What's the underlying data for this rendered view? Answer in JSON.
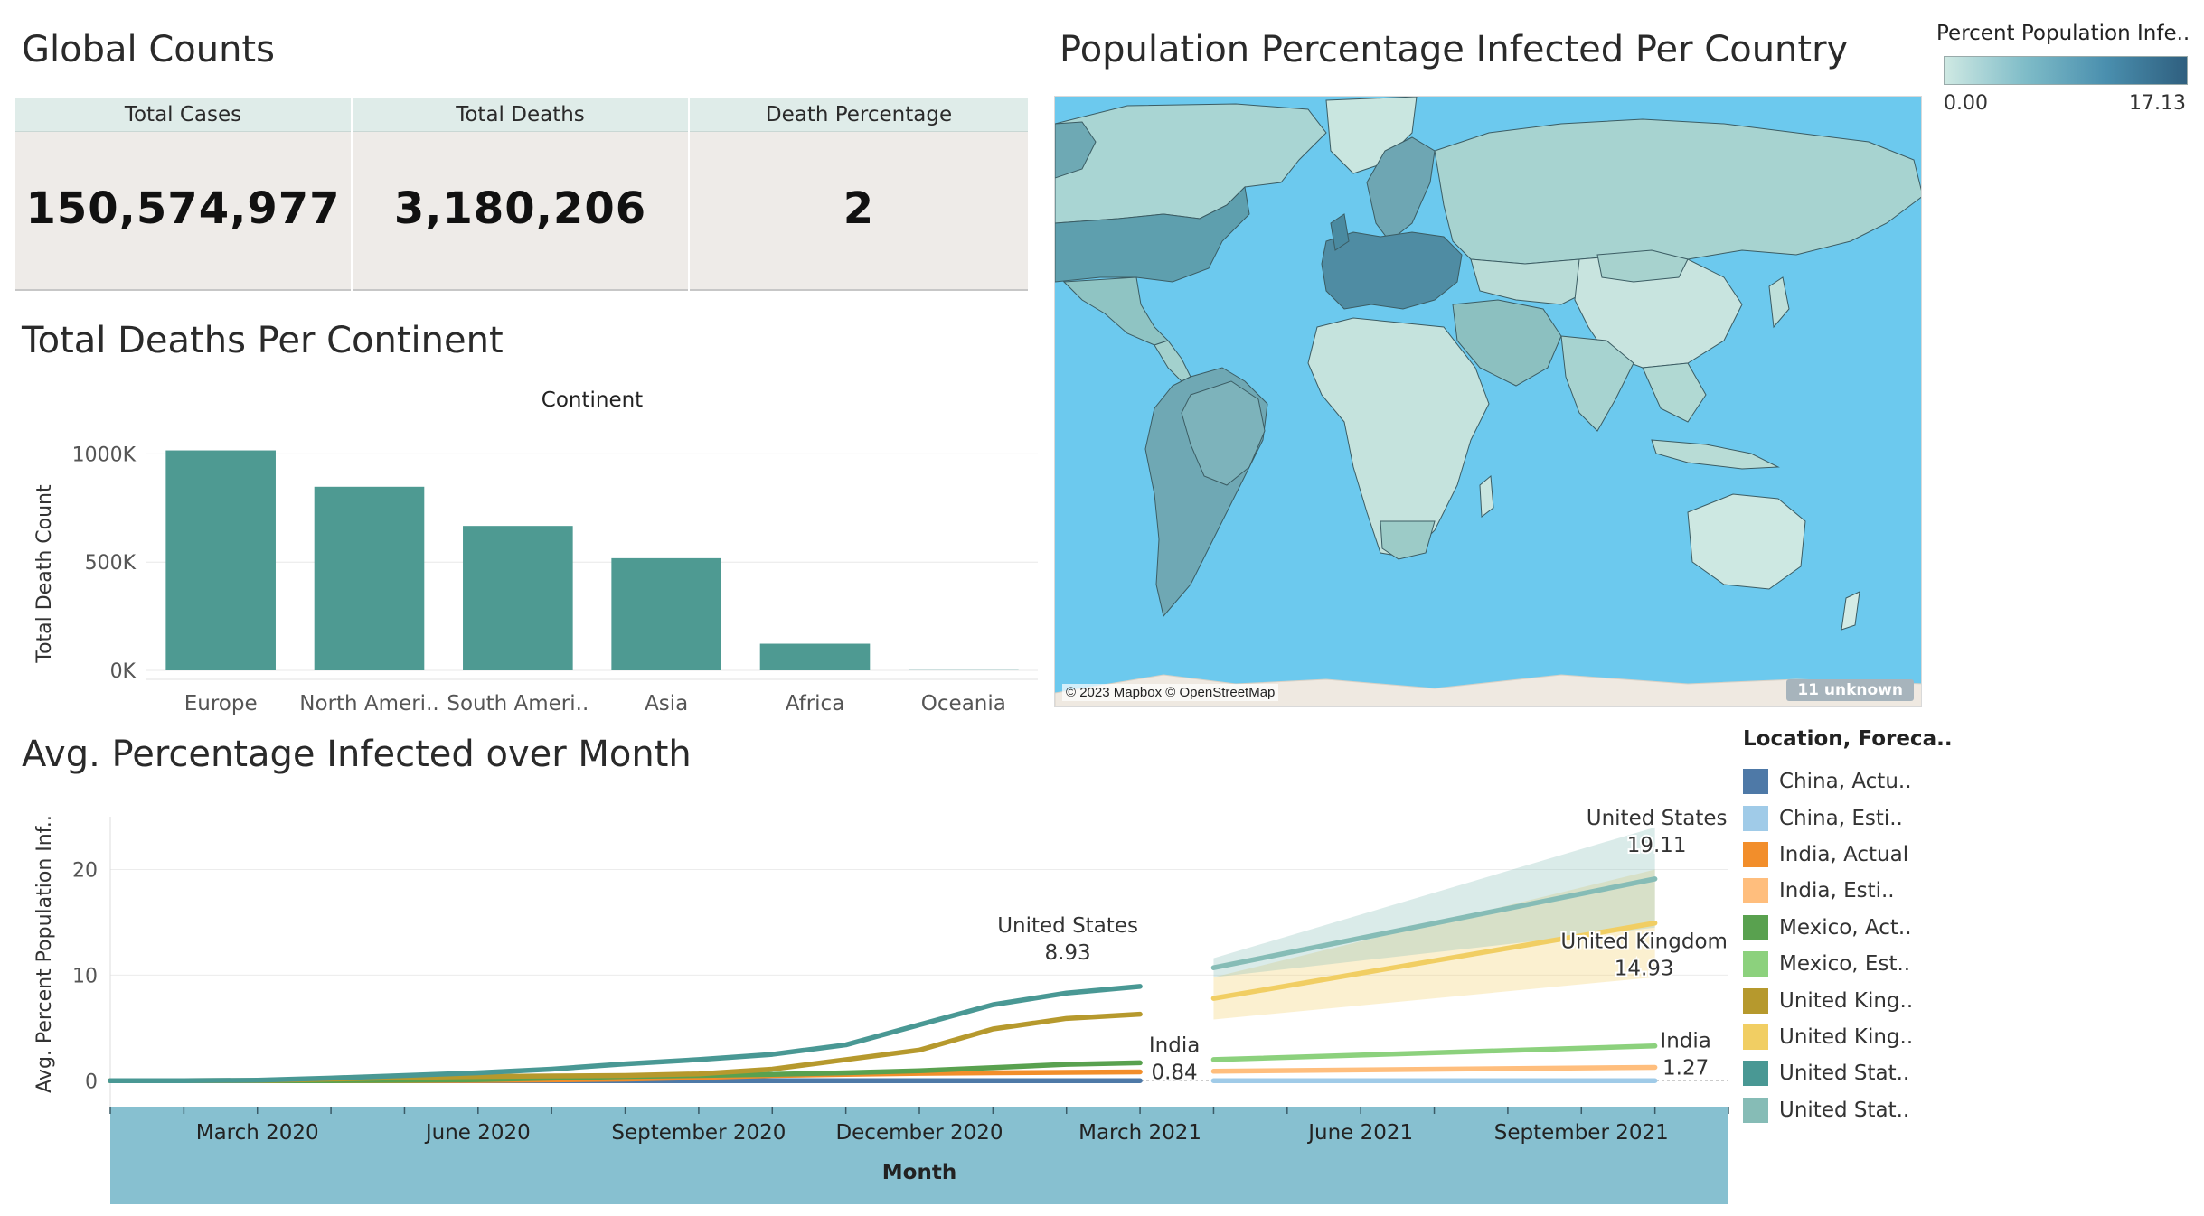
{
  "dashboard": {
    "global_counts": {
      "title": "Global Counts",
      "headers": [
        "Total Cases",
        "Total Deaths",
        "Death Percentage"
      ],
      "values": [
        "150,574,977",
        "3,180,206",
        "2"
      ]
    },
    "map_panel": {
      "title": "Population Percentage Infected Per Country",
      "attribution": "© 2023 Mapbox © OpenStreetMap",
      "unknown_badge": "11 unknown",
      "colors": {
        "ocean": "#6cc9ee",
        "land_low": "#cfe9e3",
        "land_high": "#2f5f7f",
        "unmapped": "#efe9e1"
      }
    },
    "color_legend": {
      "title": "Percent Population Infe..",
      "min_label": "0.00",
      "max_label": "17.13",
      "min": 0.0,
      "max": 17.13
    },
    "series_legend": {
      "title": "Location, Foreca..",
      "items": [
        {
          "label": "China, Actu..",
          "color": "#4e79a7"
        },
        {
          "label": "China, Esti..",
          "color": "#a0cbe8"
        },
        {
          "label": "India, Actual",
          "color": "#f28e2b"
        },
        {
          "label": "India, Esti..",
          "color": "#ffbe7d"
        },
        {
          "label": "Mexico, Act..",
          "color": "#59a14f"
        },
        {
          "label": "Mexico, Est..",
          "color": "#8cd17d"
        },
        {
          "label": "United King..",
          "color": "#b6992d"
        },
        {
          "label": "United King..",
          "color": "#f1ce63"
        },
        {
          "label": "United Stat..",
          "color": "#499894"
        },
        {
          "label": "United Stat..",
          "color": "#86bcb6"
        }
      ]
    }
  },
  "chart_data": [
    {
      "type": "bar",
      "title": "Total Deaths Per Continent",
      "header_label": "Continent",
      "ylabel": "Total Death Count",
      "xlabel": "",
      "categories": [
        "Europe",
        "North Ameri..",
        "South Ameri..",
        "Asia",
        "Africa",
        "Oceania"
      ],
      "values": [
        1016000,
        848000,
        667000,
        518000,
        123000,
        1000
      ],
      "ylim": [
        0,
        1000000
      ],
      "yticks": [
        0,
        500000,
        1000000
      ],
      "ytick_labels": [
        "0K",
        "500K",
        "1000K"
      ],
      "color": "#4e9a92",
      "grid": true
    },
    {
      "type": "line",
      "title": "Avg. Percentage Infected over Month",
      "xlabel": "Month",
      "ylabel": "Avg. Percent Population Inf..",
      "x_range": [
        "2020-01",
        "2021-11"
      ],
      "xticks": [
        "2020-03",
        "2020-06",
        "2020-09",
        "2020-12",
        "2021-03",
        "2021-06",
        "2021-09"
      ],
      "xtick_labels": [
        "March 2020",
        "June 2020",
        "September 2020",
        "December 2020",
        "March 2021",
        "June 2021",
        "September 2021"
      ],
      "ylim": [
        -1,
        25
      ],
      "yticks": [
        0,
        10,
        20
      ],
      "series": [
        {
          "name": "China, Actu..",
          "color": "#4e79a7",
          "x": [
            "2020-01",
            "2020-02",
            "2020-03",
            "2020-04",
            "2020-05",
            "2020-06",
            "2020-07",
            "2020-08",
            "2020-09",
            "2020-10",
            "2020-11",
            "2020-12",
            "2021-01",
            "2021-02",
            "2021-03"
          ],
          "y": [
            0,
            0.01,
            0.01,
            0.01,
            0.01,
            0.01,
            0.01,
            0.01,
            0.01,
            0.01,
            0.01,
            0.01,
            0.01,
            0.01,
            0.01
          ]
        },
        {
          "name": "China, Esti..",
          "color": "#a0cbe8",
          "x": [
            "2021-04",
            "2021-10"
          ],
          "y": [
            0.01,
            0.01
          ]
        },
        {
          "name": "India, Actual",
          "color": "#f28e2b",
          "x": [
            "2020-01",
            "2020-02",
            "2020-03",
            "2020-04",
            "2020-05",
            "2020-06",
            "2020-07",
            "2020-08",
            "2020-09",
            "2020-10",
            "2020-11",
            "2020-12",
            "2021-01",
            "2021-02",
            "2021-03"
          ],
          "y": [
            0,
            0,
            0,
            0,
            0.01,
            0.03,
            0.08,
            0.15,
            0.3,
            0.5,
            0.6,
            0.7,
            0.75,
            0.8,
            0.84
          ]
        },
        {
          "name": "India, Esti..",
          "color": "#ffbe7d",
          "x": [
            "2021-04",
            "2021-10"
          ],
          "y": [
            0.9,
            1.27
          ]
        },
        {
          "name": "Mexico, Act..",
          "color": "#59a14f",
          "x": [
            "2020-01",
            "2020-02",
            "2020-03",
            "2020-04",
            "2020-05",
            "2020-06",
            "2020-07",
            "2020-08",
            "2020-09",
            "2020-10",
            "2020-11",
            "2020-12",
            "2021-01",
            "2021-02",
            "2021-03"
          ],
          "y": [
            0,
            0,
            0,
            0.01,
            0.04,
            0.1,
            0.25,
            0.4,
            0.5,
            0.6,
            0.75,
            0.95,
            1.25,
            1.55,
            1.7
          ]
        },
        {
          "name": "Mexico, Est..",
          "color": "#8cd17d",
          "x": [
            "2021-04",
            "2021-10"
          ],
          "y": [
            2.0,
            3.3
          ]
        },
        {
          "name": "United King..",
          "color": "#b6992d",
          "x": [
            "2020-01",
            "2020-02",
            "2020-03",
            "2020-04",
            "2020-05",
            "2020-06",
            "2020-07",
            "2020-08",
            "2020-09",
            "2020-10",
            "2020-11",
            "2020-12",
            "2021-01",
            "2021-02",
            "2021-03"
          ],
          "y": [
            0,
            0,
            0.02,
            0.15,
            0.3,
            0.4,
            0.45,
            0.5,
            0.65,
            1.1,
            2.0,
            2.9,
            4.9,
            5.9,
            6.3
          ]
        },
        {
          "name": "United King..",
          "color": "#f1ce63",
          "x": [
            "2021-04",
            "2021-10"
          ],
          "y": [
            7.8,
            14.93
          ],
          "band_low": [
            5.8,
            9.8
          ],
          "band_high": [
            9.8,
            20.0
          ]
        },
        {
          "name": "United Stat..",
          "color": "#499894",
          "x": [
            "2020-01",
            "2020-02",
            "2020-03",
            "2020-04",
            "2020-05",
            "2020-06",
            "2020-07",
            "2020-08",
            "2020-09",
            "2020-10",
            "2020-11",
            "2020-12",
            "2021-01",
            "2021-02",
            "2021-03"
          ],
          "y": [
            0,
            0,
            0.05,
            0.25,
            0.5,
            0.75,
            1.1,
            1.6,
            2.0,
            2.5,
            3.4,
            5.3,
            7.2,
            8.3,
            8.93
          ]
        },
        {
          "name": "United Stat..",
          "color": "#86bcb6",
          "x": [
            "2021-04",
            "2021-10"
          ],
          "y": [
            10.7,
            19.11
          ],
          "band_low": [
            9.8,
            14.5
          ],
          "band_high": [
            11.6,
            24.0
          ]
        }
      ],
      "annotations": [
        {
          "series": "United States",
          "value": "8.93"
        },
        {
          "series": "India",
          "value": "0.84"
        },
        {
          "series": "United States",
          "value": "19.11"
        },
        {
          "series": "United Kingdom",
          "value": "14.93"
        },
        {
          "series": "India",
          "value": "1.27"
        }
      ]
    }
  ]
}
